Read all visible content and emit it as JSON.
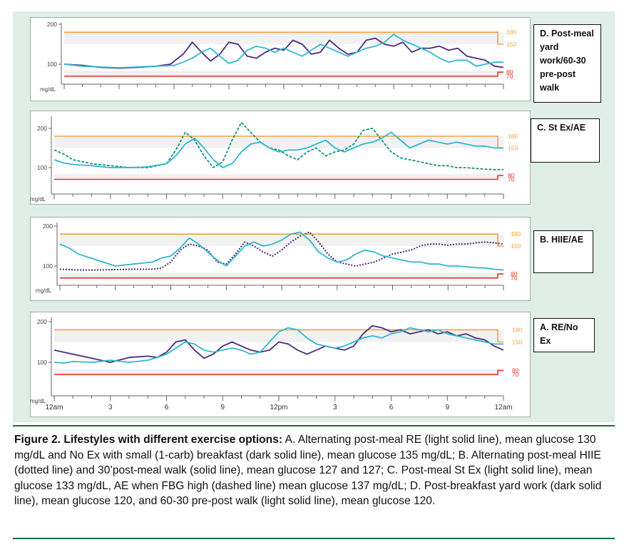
{
  "figure": {
    "caption_title": "Figure 2. Lifestyles with different exercise options:",
    "caption_body": " A. Alternating post-meal RE (light solid line), mean glucose 130 mg/dL and No Ex with small (1-carb) breakfast (dark solid line), mean glucose 135 mg/dL; B. Alternating post-meal HIIE (dotted line) and 30’post-meal walk (solid line), mean glucose 127 and 127; C. Post-meal St Ex (light solid line), mean glucose 133 mg/dL, AE when FBG high (dashed line) mean glucose 137 mg/dL; D. Post-breakfast yard work (dark solid line), mean glucose 120, and 60-30 pre-post walk (light solid line), mean glucose 120."
  },
  "colors": {
    "background": "#dfeee6",
    "dark_line": "#4b2a7e",
    "light_line": "#2eb8cf",
    "green_line": "#14957a",
    "orange_line": "#f5a044",
    "red_line": "#e8372b",
    "rule": "#1a6b48"
  },
  "chart_data": [
    {
      "type": "line",
      "panel_label": "D. Post-meal yard work/60-30 pre-post walk",
      "ylabel": "mg/dL",
      "y_ticks": [
        "200",
        "100"
      ],
      "right_labels": [
        "180",
        "150",
        "80",
        "70"
      ],
      "ylim": [
        40,
        210
      ],
      "xlim": [
        0,
        24
      ],
      "targets": {
        "high": 180,
        "low": 70
      },
      "series": [
        {
          "style": "dark-solid",
          "color": "#4b2a7e",
          "x": [
            0,
            1,
            2,
            3,
            4,
            5,
            5.8,
            6.5,
            7,
            7.5,
            8,
            8.5,
            9,
            9.5,
            10,
            10.5,
            11,
            11.5,
            12,
            12.5,
            13,
            13.5,
            14,
            14.5,
            15,
            15.5,
            16,
            16.5,
            17,
            17.5,
            18,
            18.5,
            19,
            19.5,
            20,
            20.5,
            21,
            21.5,
            22,
            22.5,
            23,
            23.5,
            24
          ],
          "y": [
            100,
            97,
            92,
            90,
            92,
            95,
            100,
            125,
            155,
            130,
            108,
            125,
            155,
            150,
            120,
            115,
            130,
            140,
            135,
            160,
            150,
            125,
            130,
            160,
            140,
            125,
            130,
            160,
            165,
            150,
            145,
            155,
            130,
            140,
            140,
            145,
            135,
            140,
            120,
            115,
            110,
            95,
            92
          ]
        },
        {
          "style": "light-solid",
          "color": "#2eb8cf",
          "x": [
            0,
            1,
            2,
            3,
            4,
            5,
            6,
            6.5,
            7,
            7.5,
            8,
            8.5,
            9,
            9.5,
            10,
            10.5,
            11,
            11.5,
            12,
            12.5,
            13,
            13.5,
            14,
            14.5,
            15,
            15.5,
            16,
            16.5,
            17,
            17.5,
            18,
            18.5,
            19,
            19.5,
            20,
            20.5,
            21,
            21.5,
            22,
            22.5,
            23,
            23.5,
            24
          ],
          "y": [
            100,
            95,
            93,
            91,
            93,
            95,
            97,
            105,
            115,
            130,
            140,
            120,
            102,
            110,
            135,
            145,
            140,
            130,
            140,
            130,
            120,
            135,
            150,
            140,
            130,
            120,
            130,
            140,
            145,
            155,
            175,
            160,
            150,
            140,
            130,
            115,
            105,
            110,
            110,
            95,
            100,
            105,
            105
          ]
        }
      ]
    },
    {
      "type": "line",
      "panel_label": "C. St Ex/AE",
      "ylabel": "mg/dL",
      "y_ticks": [
        "200",
        "100"
      ],
      "right_labels": [
        "180",
        "150",
        "80",
        "70"
      ],
      "ylim": [
        40,
        210
      ],
      "xlim": [
        0,
        24
      ],
      "targets": {
        "high": 180,
        "low": 70
      },
      "series": [
        {
          "style": "dashed",
          "color": "#14957a",
          "x": [
            0,
            0.5,
            1,
            2,
            3,
            4,
            5,
            5.5,
            6,
            6.5,
            7,
            7.5,
            8,
            8.5,
            9,
            9.5,
            10,
            10.5,
            11,
            11.5,
            12,
            12.5,
            13,
            13.5,
            14,
            14.5,
            15,
            15.5,
            16,
            16.5,
            17,
            17.5,
            18,
            18.5,
            19,
            19.5,
            20,
            20.5,
            21,
            21.5,
            22,
            22.5,
            23,
            23.5,
            24
          ],
          "y": [
            145,
            135,
            120,
            110,
            105,
            100,
            100,
            105,
            110,
            145,
            190,
            170,
            130,
            100,
            115,
            170,
            215,
            190,
            165,
            150,
            145,
            130,
            120,
            140,
            150,
            130,
            140,
            145,
            160,
            195,
            200,
            170,
            140,
            125,
            120,
            115,
            110,
            105,
            105,
            100,
            100,
            98,
            96,
            95,
            95
          ]
        },
        {
          "style": "light-solid",
          "color": "#2eb8cf",
          "x": [
            0,
            0.5,
            1,
            2,
            3,
            4,
            5,
            5.5,
            6,
            6.5,
            7,
            7.5,
            8,
            8.5,
            9,
            9.5,
            10,
            10.5,
            11,
            11.5,
            12,
            12.5,
            13,
            13.5,
            14,
            14.5,
            15,
            15.5,
            16,
            16.5,
            17,
            17.5,
            18,
            18.5,
            19,
            19.5,
            20,
            20.5,
            21,
            21.5,
            22,
            22.5,
            23,
            23.5,
            24
          ],
          "y": [
            120,
            112,
            108,
            105,
            100,
            100,
            102,
            106,
            110,
            130,
            160,
            175,
            150,
            120,
            100,
            110,
            140,
            160,
            165,
            150,
            140,
            145,
            145,
            150,
            160,
            170,
            150,
            140,
            150,
            160,
            165,
            175,
            190,
            170,
            150,
            160,
            170,
            165,
            160,
            165,
            160,
            155,
            155,
            150,
            150
          ]
        }
      ]
    },
    {
      "type": "line",
      "panel_label": "B. HIIE/AE",
      "ylabel": "mg/dL",
      "y_ticks": [
        "200",
        "100"
      ],
      "right_labels": [
        "180",
        "150",
        "80",
        "70"
      ],
      "ylim": [
        40,
        210
      ],
      "xlim": [
        0,
        24
      ],
      "targets": {
        "high": 180,
        "low": 70
      },
      "series": [
        {
          "style": "dotted",
          "color": "#4b2a7e",
          "x": [
            0,
            1,
            2,
            3,
            4,
            5,
            5.5,
            6,
            6.5,
            7,
            7.5,
            8,
            8.5,
            9,
            9.5,
            10,
            10.5,
            11,
            11.5,
            12,
            12.5,
            13,
            13.5,
            14,
            14.5,
            15,
            15.5,
            16,
            16.5,
            17,
            17.5,
            18,
            18.5,
            19,
            19.5,
            20,
            20.5,
            21,
            21.5,
            22,
            22.5,
            23,
            23.5,
            24
          ],
          "y": [
            92,
            90,
            90,
            91,
            92,
            92,
            95,
            110,
            140,
            155,
            150,
            140,
            110,
            105,
            130,
            160,
            150,
            135,
            125,
            140,
            160,
            175,
            185,
            160,
            130,
            110,
            105,
            100,
            105,
            110,
            120,
            130,
            135,
            140,
            150,
            155,
            155,
            152,
            155,
            155,
            158,
            160,
            158,
            155
          ]
        },
        {
          "style": "light-solid",
          "color": "#2eb8cf",
          "x": [
            0,
            0.5,
            1,
            2,
            3,
            4,
            5,
            5.5,
            6,
            6.5,
            7,
            7.5,
            8,
            8.5,
            9,
            9.5,
            10,
            10.5,
            11,
            11.5,
            12,
            12.5,
            13,
            13.5,
            14,
            14.5,
            15,
            15.5,
            16,
            16.5,
            17,
            17.5,
            18,
            18.5,
            19,
            19.5,
            20,
            20.5,
            21,
            21.5,
            22,
            22.5,
            23,
            23.5,
            24
          ],
          "y": [
            155,
            145,
            130,
            115,
            100,
            105,
            110,
            120,
            125,
            145,
            170,
            155,
            135,
            115,
            100,
            125,
            150,
            160,
            150,
            155,
            165,
            180,
            185,
            165,
            135,
            120,
            110,
            115,
            130,
            140,
            135,
            125,
            120,
            115,
            110,
            110,
            105,
            105,
            100,
            100,
            98,
            96,
            95,
            92,
            90
          ]
        }
      ]
    },
    {
      "type": "line",
      "panel_label": "A. RE/No Ex",
      "ylabel": "mg/dL",
      "y_ticks": [
        "200",
        "100"
      ],
      "right_labels": [
        "180",
        "150",
        "80",
        "70"
      ],
      "ylim": [
        40,
        210
      ],
      "xlim": [
        0,
        24
      ],
      "x_ticks": [
        "12am",
        "3",
        "6",
        "9",
        "12pm",
        "3",
        "6",
        "9",
        "12am"
      ],
      "targets": {
        "high": 180,
        "low": 70
      },
      "series": [
        {
          "style": "dark-solid",
          "color": "#4b2a7e",
          "x": [
            0,
            0.5,
            1,
            2,
            3,
            4,
            5,
            5.5,
            6,
            6.5,
            7,
            7.5,
            8,
            8.5,
            9,
            9.5,
            10,
            10.5,
            11,
            11.5,
            12,
            12.5,
            13,
            13.5,
            14,
            14.5,
            15,
            15.5,
            16,
            16.5,
            17,
            17.5,
            18,
            18.5,
            19,
            19.5,
            20,
            20.5,
            21,
            21.5,
            22,
            22.5,
            23,
            23.5,
            24
          ],
          "y": [
            130,
            125,
            120,
            110,
            100,
            112,
            115,
            112,
            125,
            150,
            155,
            130,
            110,
            120,
            140,
            150,
            140,
            130,
            125,
            130,
            150,
            145,
            130,
            120,
            130,
            140,
            135,
            130,
            140,
            170,
            190,
            185,
            175,
            180,
            170,
            175,
            180,
            170,
            175,
            165,
            170,
            160,
            155,
            140,
            130
          ]
        },
        {
          "style": "light-solid",
          "color": "#2eb8cf",
          "x": [
            0,
            0.5,
            1,
            2,
            3,
            4,
            5,
            5.5,
            6,
            6.5,
            7,
            7.5,
            8,
            8.5,
            9,
            9.5,
            10,
            10.5,
            11,
            11.5,
            12,
            12.5,
            13,
            13.5,
            14,
            14.5,
            15,
            15.5,
            16,
            16.5,
            17,
            17.5,
            18,
            18.5,
            19,
            19.5,
            20,
            20.5,
            21,
            21.5,
            22,
            22.5,
            23,
            23.5,
            24
          ],
          "y": [
            100,
            98,
            102,
            100,
            105,
            100,
            105,
            112,
            120,
            135,
            150,
            145,
            130,
            125,
            130,
            135,
            130,
            120,
            125,
            150,
            175,
            185,
            180,
            160,
            145,
            140,
            135,
            140,
            150,
            160,
            165,
            160,
            170,
            175,
            185,
            180,
            175,
            180,
            170,
            165,
            160,
            155,
            150,
            145,
            145
          ]
        }
      ]
    }
  ]
}
